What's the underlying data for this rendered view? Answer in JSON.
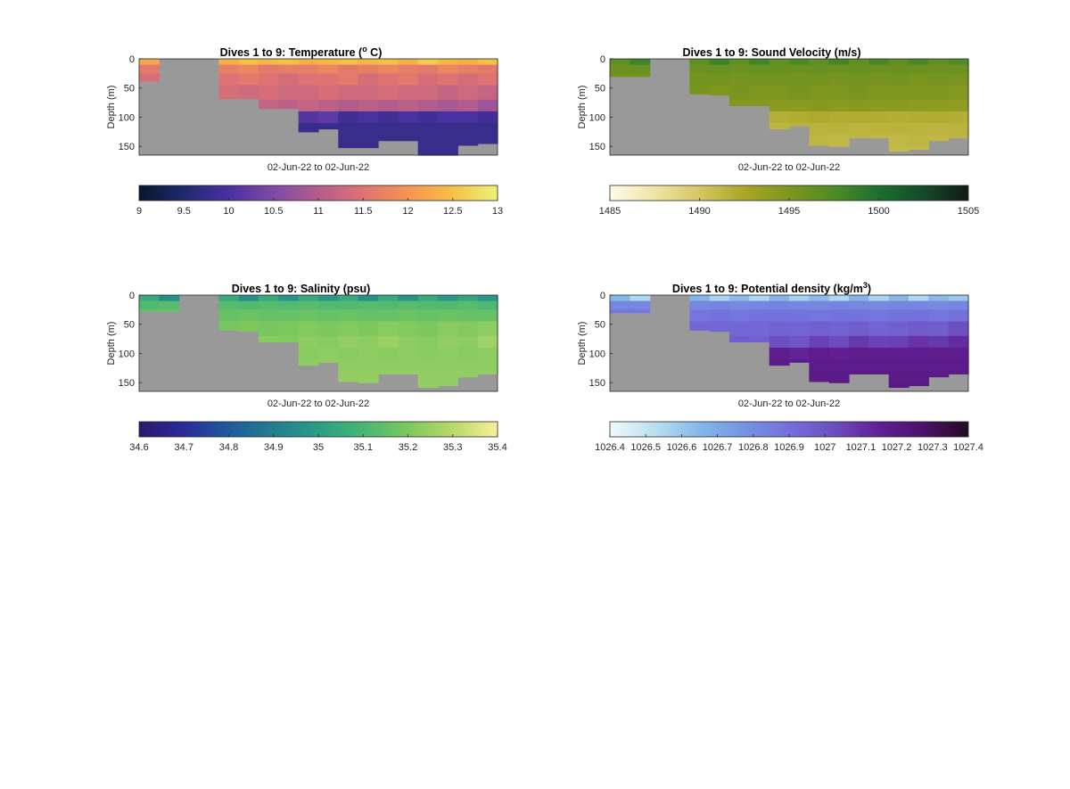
{
  "chart_data": [
    {
      "type": "heatmap",
      "title": "Dives 1 to 9: Temperature (",
      "title_sup": "o",
      "title_tail": " C)",
      "xlabel": "02-Jun-22 to 02-Jun-22",
      "ylabel": "Depth (m)",
      "ylim": [
        0,
        165
      ],
      "yticks": [
        "0",
        "50",
        "100",
        "150"
      ],
      "yticks_values": [
        0,
        50,
        100,
        150
      ],
      "background_color": "#999999",
      "colormap": [
        "#06162f",
        "#1f2a6e",
        "#4a2fa0",
        "#7e4aa6",
        "#b25c8d",
        "#df7373",
        "#f69451",
        "#f6c046",
        "#ecf27a"
      ],
      "clim": [
        9,
        13
      ],
      "cbar_ticks": [
        "9",
        "9.5",
        "10",
        "10.5",
        "11",
        "11.5",
        "12",
        "12.5",
        "13"
      ],
      "cbar_values": [
        9,
        9.5,
        10,
        10.5,
        11,
        11.5,
        12,
        12.5,
        13
      ],
      "columns_max_depth": [
        38,
        0,
        0,
        0,
        68,
        68,
        85,
        85,
        125,
        120,
        152,
        152,
        140,
        140,
        165,
        165,
        148,
        145
      ],
      "depth_bins": [
        0,
        10,
        25,
        45,
        70,
        90,
        110,
        130,
        150,
        165
      ],
      "values": [
        [
          12.2,
          12.4,
          12.5,
          12.4,
          12.3,
          12.5,
          12.4,
          12.5,
          12.3,
          12.4,
          12.5,
          12.4,
          12.5,
          12.3,
          12.6,
          12.4,
          12.3,
          12.5
        ],
        [
          11.6,
          11.7,
          11.7,
          11.6,
          11.7,
          11.8,
          11.6,
          11.7,
          11.7,
          11.8,
          11.6,
          11.7,
          11.8,
          11.7,
          11.6,
          11.8,
          11.7,
          11.6
        ],
        [
          11.4,
          11.5,
          11.5,
          11.4,
          11.5,
          11.6,
          11.5,
          11.4,
          11.5,
          11.5,
          11.6,
          11.4,
          11.5,
          11.6,
          11.4,
          11.5,
          11.4,
          11.5
        ],
        [
          11.3,
          11.3,
          11.3,
          11.3,
          11.4,
          11.3,
          11.4,
          11.3,
          11.3,
          11.4,
          11.3,
          11.3,
          11.4,
          11.3,
          11.3,
          11.2,
          11.3,
          11.2
        ],
        [
          11.1,
          11.1,
          11.1,
          11.1,
          11.2,
          11.1,
          11.2,
          11.1,
          11.2,
          11.1,
          11.0,
          11.1,
          11.0,
          11.1,
          11.0,
          10.9,
          11.0,
          10.8
        ],
        [
          10.9,
          10.9,
          10.9,
          10.9,
          10.9,
          10.9,
          10.9,
          10.9,
          10.1,
          10.2,
          9.9,
          10.0,
          9.9,
          10.0,
          9.9,
          10.0,
          10.0,
          9.9
        ],
        [
          10.0,
          10.0,
          10.0,
          10.0,
          10.0,
          10.0,
          10.0,
          10.0,
          9.8,
          9.8,
          9.8,
          9.8,
          9.8,
          9.8,
          9.8,
          9.8,
          9.8,
          9.8
        ],
        [
          9.8,
          9.8,
          9.8,
          9.8,
          9.8,
          9.8,
          9.8,
          9.8,
          9.8,
          9.8,
          9.8,
          9.8,
          9.8,
          9.8,
          9.8,
          9.8,
          9.8,
          9.8
        ],
        [
          9.8,
          9.8,
          9.8,
          9.8,
          9.8,
          9.8,
          9.8,
          9.8,
          9.8,
          9.8,
          9.8,
          9.8,
          9.8,
          9.8,
          9.8,
          9.8,
          9.8,
          9.8
        ]
      ]
    },
    {
      "type": "heatmap",
      "title": "Dives 1 to 9: Sound Velocity (m/s)",
      "title_sup": "",
      "title_tail": "",
      "xlabel": "02-Jun-22 to 02-Jun-22",
      "ylabel": "Depth (m)",
      "ylim": [
        0,
        165
      ],
      "yticks": [
        "0",
        "50",
        "100",
        "150"
      ],
      "yticks_values": [
        0,
        50,
        100,
        150
      ],
      "background_color": "#999999",
      "colormap": [
        "#fffbe6",
        "#efe3a8",
        "#d6c663",
        "#aaa626",
        "#7e961e",
        "#4e8b26",
        "#1d6e2e",
        "#144a2c",
        "#111a13"
      ],
      "clim": [
        1485,
        1505
      ],
      "cbar_ticks": [
        "1485",
        "1490",
        "1495",
        "1500",
        "1505"
      ],
      "cbar_values": [
        1485,
        1490,
        1495,
        1500,
        1505
      ],
      "columns_max_depth": [
        30,
        30,
        0,
        0,
        60,
        62,
        80,
        80,
        120,
        115,
        148,
        150,
        135,
        135,
        158,
        155,
        140,
        135
      ],
      "depth_bins": [
        0,
        10,
        25,
        45,
        70,
        90,
        110,
        130,
        150,
        165
      ],
      "values": [
        [
          1496.6,
          1498.2,
          1496.8,
          1497.1,
          1496.6,
          1498.3,
          1496.5,
          1498.1,
          1496.4,
          1497.8,
          1496.6,
          1498.0,
          1496.5,
          1497.9,
          1496.6,
          1497.7,
          1496.5,
          1497.4
        ],
        [
          1496.0,
          1496.1,
          1496.1,
          1496.1,
          1496.0,
          1496.2,
          1496.0,
          1496.2,
          1496.1,
          1496.0,
          1496.2,
          1496.0,
          1496.1,
          1496.0,
          1496.1,
          1496.0,
          1495.9,
          1496.0
        ],
        [
          1495.5,
          1495.5,
          1495.6,
          1495.6,
          1495.5,
          1495.6,
          1495.4,
          1495.6,
          1495.5,
          1495.5,
          1495.6,
          1495.4,
          1495.6,
          1495.4,
          1495.5,
          1495.3,
          1495.4,
          1495.2
        ],
        [
          1495.1,
          1495.1,
          1495.1,
          1495.1,
          1495.2,
          1495.1,
          1495.2,
          1495.0,
          1495.1,
          1495.2,
          1495.0,
          1495.1,
          1495.2,
          1495.0,
          1495.1,
          1494.9,
          1495.0,
          1494.8
        ],
        [
          1494.8,
          1494.8,
          1494.8,
          1494.8,
          1494.8,
          1494.8,
          1494.7,
          1494.7,
          1494.3,
          1494.4,
          1494.5,
          1494.4,
          1494.5,
          1494.4,
          1494.3,
          1494.2,
          1494.2,
          1494.0
        ],
        [
          1494.5,
          1494.5,
          1494.5,
          1494.5,
          1494.5,
          1494.5,
          1494.5,
          1494.5,
          1491.8,
          1492.0,
          1492.2,
          1492.0,
          1492.1,
          1492.0,
          1491.9,
          1492.0,
          1492.1,
          1491.9
        ],
        [
          1491.6,
          1491.6,
          1491.6,
          1491.6,
          1491.6,
          1491.6,
          1491.6,
          1491.6,
          1491.4,
          1491.6,
          1491.5,
          1491.6,
          1491.4,
          1491.5,
          1491.6,
          1491.5,
          1491.4,
          1491.5
        ],
        [
          1491.3,
          1491.3,
          1491.3,
          1491.3,
          1491.3,
          1491.3,
          1491.3,
          1491.3,
          1491.2,
          1491.2,
          1491.3,
          1491.2,
          1491.3,
          1491.2,
          1491.2,
          1491.3,
          1491.2,
          1491.3
        ],
        [
          1491.0,
          1491.0,
          1491.0,
          1491.0,
          1491.0,
          1491.0,
          1491.0,
          1491.0,
          1491.0,
          1491.0,
          1491.0,
          1491.0,
          1491.0,
          1491.0,
          1491.0,
          1491.0,
          1491.0,
          1491.0
        ]
      ]
    },
    {
      "type": "heatmap",
      "title": "Dives 1 to 9: Salinity (psu)",
      "title_sup": "",
      "title_tail": "",
      "xlabel": "02-Jun-22 to 02-Jun-22",
      "ylabel": "Depth (m)",
      "ylim": [
        0,
        165
      ],
      "yticks": [
        "0",
        "50",
        "100",
        "150"
      ],
      "yticks_values": [
        0,
        50,
        100,
        150
      ],
      "background_color": "#999999",
      "colormap": [
        "#2a186c",
        "#2a2a9c",
        "#1f5a9b",
        "#237d90",
        "#2a9d86",
        "#48b675",
        "#7cc85d",
        "#b9d86b",
        "#f7ef9a"
      ],
      "clim": [
        34.6,
        35.4
      ],
      "cbar_ticks": [
        "34.6",
        "34.7",
        "34.8",
        "34.9",
        "35",
        "35.1",
        "35.2",
        "35.3",
        "35.4"
      ],
      "cbar_values": [
        34.6,
        34.7,
        34.8,
        34.9,
        35.0,
        35.1,
        35.2,
        35.3,
        35.4
      ],
      "columns_max_depth": [
        28,
        28,
        0,
        0,
        60,
        62,
        80,
        80,
        120,
        115,
        148,
        150,
        135,
        135,
        158,
        155,
        140,
        135
      ],
      "depth_bins": [
        0,
        10,
        25,
        45,
        70,
        90,
        110,
        130,
        150,
        165
      ],
      "values": [
        [
          35.05,
          34.95,
          35.05,
          35.0,
          35.05,
          34.95,
          35.05,
          34.97,
          35.05,
          34.98,
          35.05,
          34.96,
          35.05,
          34.97,
          35.05,
          34.98,
          35.03,
          34.98
        ],
        [
          35.12,
          35.13,
          35.12,
          35.12,
          35.13,
          35.12,
          35.13,
          35.12,
          35.13,
          35.12,
          35.12,
          35.13,
          35.12,
          35.13,
          35.12,
          35.12,
          35.13,
          35.11
        ],
        [
          35.16,
          35.16,
          35.16,
          35.16,
          35.16,
          35.17,
          35.16,
          35.16,
          35.17,
          35.16,
          35.17,
          35.16,
          35.16,
          35.17,
          35.16,
          35.17,
          35.16,
          35.16
        ],
        [
          35.19,
          35.19,
          35.19,
          35.19,
          35.19,
          35.2,
          35.19,
          35.2,
          35.21,
          35.2,
          35.21,
          35.2,
          35.22,
          35.21,
          35.2,
          35.22,
          35.21,
          35.23
        ],
        [
          35.21,
          35.21,
          35.21,
          35.21,
          35.21,
          35.22,
          35.22,
          35.21,
          35.23,
          35.22,
          35.24,
          35.23,
          35.25,
          35.23,
          35.22,
          35.24,
          35.23,
          35.26
        ],
        [
          35.22,
          35.22,
          35.22,
          35.22,
          35.22,
          35.22,
          35.22,
          35.22,
          35.22,
          35.23,
          35.22,
          35.23,
          35.22,
          35.23,
          35.22,
          35.23,
          35.22,
          35.23
        ],
        [
          35.23,
          35.23,
          35.23,
          35.23,
          35.23,
          35.23,
          35.23,
          35.23,
          35.23,
          35.23,
          35.23,
          35.23,
          35.23,
          35.23,
          35.23,
          35.23,
          35.23,
          35.23
        ],
        [
          35.24,
          35.24,
          35.24,
          35.24,
          35.24,
          35.24,
          35.24,
          35.24,
          35.24,
          35.24,
          35.24,
          35.24,
          35.24,
          35.24,
          35.24,
          35.24,
          35.24,
          35.24
        ],
        [
          35.24,
          35.24,
          35.24,
          35.24,
          35.24,
          35.24,
          35.24,
          35.24,
          35.24,
          35.24,
          35.24,
          35.24,
          35.24,
          35.24,
          35.24,
          35.24,
          35.24,
          35.24
        ]
      ]
    },
    {
      "type": "heatmap",
      "title": "Dives 1 to 9: Potential density (kg/m",
      "title_sup": "3",
      "title_tail": ")",
      "xlabel": "02-Jun-22 to 02-Jun-22",
      "ylabel": "Depth (m)",
      "ylim": [
        0,
        165
      ],
      "yticks": [
        "0",
        "50",
        "100",
        "150"
      ],
      "yticks_values": [
        0,
        50,
        100,
        150
      ],
      "background_color": "#999999",
      "colormap": [
        "#f1fafc",
        "#b9dff2",
        "#84b8e8",
        "#7594e2",
        "#7470dc",
        "#6d4fbf",
        "#611e96",
        "#4c116a",
        "#230b22"
      ],
      "clim": [
        1026.4,
        1027.4
      ],
      "cbar_ticks": [
        "1026.4",
        "1026.5",
        "1026.6",
        "1026.7",
        "1026.8",
        "1026.9",
        "1027",
        "1027.1",
        "1027.2",
        "1027.3",
        "1027.4"
      ],
      "cbar_values": [
        1026.4,
        1026.5,
        1026.6,
        1026.7,
        1026.8,
        1026.9,
        1027.0,
        1027.1,
        1027.2,
        1027.3,
        1027.4
      ],
      "columns_max_depth": [
        30,
        30,
        0,
        0,
        60,
        62,
        80,
        80,
        120,
        115,
        148,
        150,
        135,
        135,
        158,
        155,
        140,
        135
      ],
      "depth_bins": [
        0,
        10,
        25,
        45,
        70,
        90,
        110,
        130,
        150,
        165
      ],
      "values": [
        [
          1026.65,
          1026.55,
          1026.62,
          1026.6,
          1026.66,
          1026.56,
          1026.64,
          1026.55,
          1026.66,
          1026.57,
          1026.64,
          1026.55,
          1026.66,
          1026.56,
          1026.65,
          1026.55,
          1026.64,
          1026.6
        ],
        [
          1026.82,
          1026.82,
          1026.8,
          1026.8,
          1026.82,
          1026.83,
          1026.81,
          1026.82,
          1026.83,
          1026.82,
          1026.82,
          1026.83,
          1026.82,
          1026.81,
          1026.83,
          1026.82,
          1026.81,
          1026.82
        ],
        [
          1026.88,
          1026.88,
          1026.88,
          1026.88,
          1026.88,
          1026.89,
          1026.88,
          1026.89,
          1026.89,
          1026.89,
          1026.88,
          1026.89,
          1026.89,
          1026.88,
          1026.89,
          1026.9,
          1026.88,
          1026.9
        ],
        [
          1026.92,
          1026.92,
          1026.92,
          1026.92,
          1026.93,
          1026.93,
          1026.93,
          1026.93,
          1026.95,
          1026.94,
          1026.96,
          1026.95,
          1026.97,
          1026.95,
          1026.96,
          1026.98,
          1026.97,
          1027.02
        ],
        [
          1026.95,
          1026.95,
          1026.95,
          1026.95,
          1026.96,
          1026.96,
          1026.97,
          1026.96,
          1027.02,
          1027.0,
          1027.06,
          1027.03,
          1027.08,
          1027.05,
          1027.06,
          1027.1,
          1027.08,
          1027.12
        ],
        [
          1027.0,
          1027.0,
          1027.0,
          1027.0,
          1027.0,
          1027.0,
          1027.0,
          1027.0,
          1027.16,
          1027.14,
          1027.17,
          1027.15,
          1027.17,
          1027.16,
          1027.17,
          1027.16,
          1027.17,
          1027.16
        ],
        [
          1027.18,
          1027.18,
          1027.18,
          1027.18,
          1027.18,
          1027.18,
          1027.18,
          1027.18,
          1027.18,
          1027.18,
          1027.18,
          1027.18,
          1027.18,
          1027.18,
          1027.18,
          1027.18,
          1027.18,
          1027.18
        ],
        [
          1027.19,
          1027.19,
          1027.19,
          1027.19,
          1027.19,
          1027.19,
          1027.19,
          1027.19,
          1027.19,
          1027.19,
          1027.19,
          1027.19,
          1027.19,
          1027.19,
          1027.19,
          1027.19,
          1027.19,
          1027.19
        ],
        [
          1027.2,
          1027.2,
          1027.2,
          1027.2,
          1027.2,
          1027.2,
          1027.2,
          1027.2,
          1027.2,
          1027.2,
          1027.2,
          1027.2,
          1027.2,
          1027.2,
          1027.2,
          1027.2,
          1027.2,
          1027.2
        ]
      ]
    }
  ]
}
